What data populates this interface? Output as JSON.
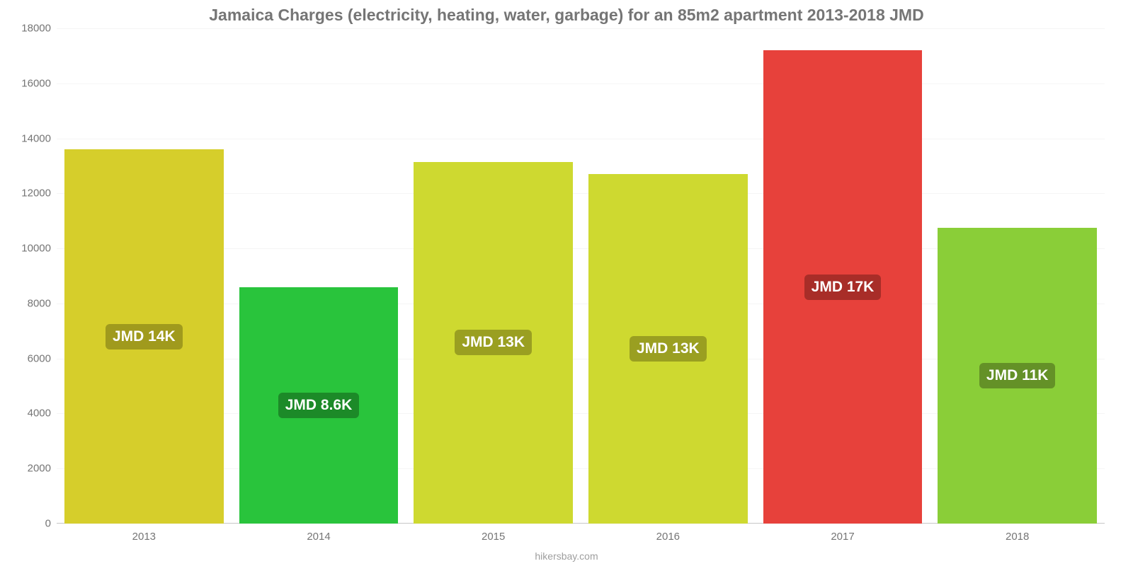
{
  "chart": {
    "type": "bar",
    "title": "Jamaica Charges (electricity, heating, water, garbage) for an 85m2 apartment 2013-2018 JMD",
    "title_fontsize": 23,
    "title_color": "#757575",
    "footer": "hikersbay.com",
    "footer_color": "#9e9e9e",
    "background_color": "#ffffff",
    "grid_color": "#f5f5f5",
    "axis_color": "#cccccc",
    "tick_label_color": "#757575",
    "tick_fontsize": 15,
    "ylim": [
      0,
      18000
    ],
    "ytick_step": 2000,
    "yticks": [
      0,
      2000,
      4000,
      6000,
      8000,
      10000,
      12000,
      14000,
      16000,
      18000
    ],
    "categories": [
      "2013",
      "2014",
      "2015",
      "2016",
      "2017",
      "2018"
    ],
    "values": [
      13600,
      8600,
      13150,
      12700,
      17200,
      10750
    ],
    "bar_colors": [
      "#d6ce2b",
      "#29c43c",
      "#ced930",
      "#ced930",
      "#e7413b",
      "#8ace38"
    ],
    "bar_labels": [
      "JMD 14K",
      "JMD 8.6K",
      "JMD 13K",
      "JMD 13K",
      "JMD 17K",
      "JMD 11K"
    ],
    "bar_label_bg": [
      "#a09a1d",
      "#1c8a28",
      "#9a9f21",
      "#9a9f21",
      "#a82d28",
      "#649127"
    ],
    "bar_label_fontsize": 21,
    "bar_label_color": "#ffffff",
    "bar_width": 0.91
  }
}
